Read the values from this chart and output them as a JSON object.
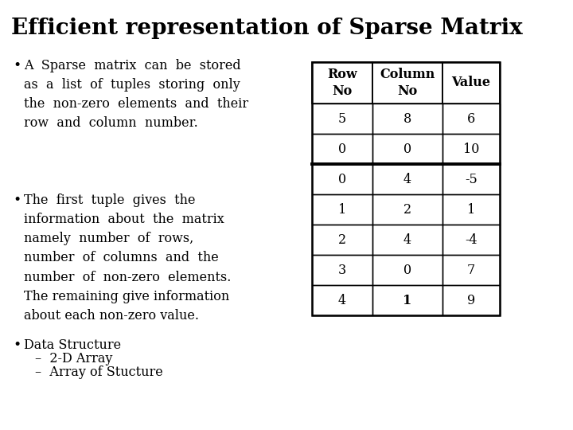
{
  "title": "Efficient representation of Sparse Matrix",
  "title_fontsize": 20,
  "title_fontweight": "bold",
  "background_color": "#ffffff",
  "text_color": "#000000",
  "bullet1": "A  Sparse  matrix  can  be  stored\nas  a  list  of  tuples  storing  only\nthe  non-zero  elements  and  their\nrow  and  column  number.",
  "bullet2": "The  first  tuple  gives  the\ninformation  about  the  matrix\nnamely  number  of  rows,\nnumber  of  columns  and  the\nnumber  of  non-zero  elements.\nThe remaining give information\nabout each non-zero value.",
  "bullet3_line1": "Data Structure",
  "bullet3_line2": "–  2-D Array",
  "bullet3_line3": "–  Array of Stucture",
  "table_headers": [
    "Row\nNo",
    "Column\nNo",
    "Value"
  ],
  "table_data": [
    [
      "5",
      "8",
      "6"
    ],
    [
      "0",
      "0",
      "10"
    ],
    [
      "0",
      "4",
      "-5"
    ],
    [
      "1",
      "2",
      "1"
    ],
    [
      "2",
      "4",
      "-4"
    ],
    [
      "3",
      "0",
      "7"
    ],
    [
      "4",
      "1",
      "9"
    ]
  ],
  "thick_row_after": 2,
  "font_family": "DejaVu Serif",
  "text_fontsize": 11.5,
  "table_fontsize": 11.5
}
